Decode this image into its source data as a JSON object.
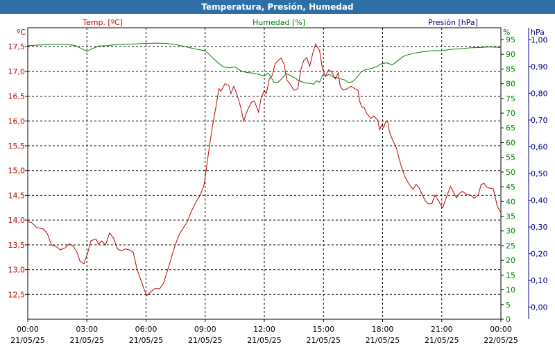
{
  "window": {
    "title": "Temperatura, Presión, Humedad"
  },
  "chart_data": {
    "type": "line",
    "title": "Temperatura, Presión, Humedad",
    "grid": true,
    "x_ticks": [
      {
        "time": "00:00",
        "date": "21/05/25"
      },
      {
        "time": "03:00",
        "date": "21/05/25"
      },
      {
        "time": "06:00",
        "date": "21/05/25"
      },
      {
        "time": "09:00",
        "date": "21/05/25"
      },
      {
        "time": "12:00",
        "date": "21/05/25"
      },
      {
        "time": "15:00",
        "date": "21/05/25"
      },
      {
        "time": "18:00",
        "date": "21/05/25"
      },
      {
        "time": "21:00",
        "date": "21/05/25"
      },
      {
        "time": "00:00",
        "date": "22/05/25"
      }
    ],
    "xlim": [
      "21/05/25 00:00",
      "22/05/25 00:00"
    ],
    "x_hours_range": [
      0,
      24
    ],
    "axes": {
      "temp": {
        "label": "Temp. [ºC]",
        "unit": "ºC",
        "color": "#c00000",
        "side": "left",
        "range": [
          12.0,
          17.88
        ],
        "ticks": [
          "12,5",
          "13,0",
          "13,5",
          "14,0",
          "14,5",
          "15,0",
          "15,5",
          "16,0",
          "16,5",
          "17,0",
          "17,5"
        ]
      },
      "hum": {
        "label": "Humedad [%]",
        "unit": "%",
        "color": "#008000",
        "side": "right",
        "range": [
          0,
          99
        ],
        "ticks": [
          "0",
          "5",
          "10",
          "15",
          "20",
          "25",
          "30",
          "35",
          "40",
          "45",
          "50",
          "55",
          "60",
          "65",
          "70",
          "75",
          "80",
          "85",
          "90",
          "95"
        ]
      },
      "pres": {
        "label": "Presión [hPa]",
        "unit": "hPa",
        "color": "#000080",
        "side": "right",
        "range": [
          -0.045,
          1.045
        ],
        "ticks": [
          "0,00",
          "0,10",
          "0,20",
          "0,30",
          "0,40",
          "0,50",
          "0,60",
          "0,70",
          "0,80",
          "0,90",
          "1,00"
        ]
      }
    },
    "series": [
      {
        "name": "Temp. [ºC]",
        "axis": "temp",
        "color": "#c00000",
        "points": [
          [
            0.0,
            13.97
          ],
          [
            0.2,
            13.95
          ],
          [
            0.45,
            13.85
          ],
          [
            0.8,
            13.82
          ],
          [
            1.0,
            13.72
          ],
          [
            1.2,
            13.5
          ],
          [
            1.4,
            13.48
          ],
          [
            1.65,
            13.4
          ],
          [
            1.9,
            13.44
          ],
          [
            2.1,
            13.52
          ],
          [
            2.3,
            13.48
          ],
          [
            2.5,
            13.35
          ],
          [
            2.65,
            13.17
          ],
          [
            2.85,
            13.12
          ],
          [
            3.05,
            13.35
          ],
          [
            3.2,
            13.58
          ],
          [
            3.45,
            13.62
          ],
          [
            3.6,
            13.52
          ],
          [
            3.75,
            13.58
          ],
          [
            3.95,
            13.5
          ],
          [
            4.15,
            13.74
          ],
          [
            4.35,
            13.64
          ],
          [
            4.55,
            13.42
          ],
          [
            4.75,
            13.38
          ],
          [
            4.95,
            13.42
          ],
          [
            5.15,
            13.4
          ],
          [
            5.35,
            13.35
          ],
          [
            5.55,
            13.0
          ],
          [
            5.75,
            12.78
          ],
          [
            5.95,
            12.55
          ],
          [
            6.05,
            12.48
          ],
          [
            6.2,
            12.54
          ],
          [
            6.45,
            12.62
          ],
          [
            6.7,
            12.62
          ],
          [
            6.9,
            12.74
          ],
          [
            7.1,
            13.0
          ],
          [
            7.3,
            13.26
          ],
          [
            7.5,
            13.52
          ],
          [
            7.7,
            13.72
          ],
          [
            7.9,
            13.85
          ],
          [
            8.1,
            13.97
          ],
          [
            8.3,
            14.18
          ],
          [
            8.55,
            14.38
          ],
          [
            8.75,
            14.5
          ],
          [
            8.95,
            14.72
          ],
          [
            9.15,
            15.3
          ],
          [
            9.35,
            15.85
          ],
          [
            9.55,
            16.3
          ],
          [
            9.7,
            16.65
          ],
          [
            9.8,
            16.6
          ],
          [
            10.0,
            16.75
          ],
          [
            10.2,
            16.72
          ],
          [
            10.3,
            16.55
          ],
          [
            10.45,
            16.7
          ],
          [
            10.6,
            16.55
          ],
          [
            10.8,
            16.28
          ],
          [
            10.95,
            16.0
          ],
          [
            11.15,
            16.22
          ],
          [
            11.35,
            16.38
          ],
          [
            11.5,
            16.4
          ],
          [
            11.7,
            16.18
          ],
          [
            11.85,
            16.48
          ],
          [
            12.0,
            16.62
          ],
          [
            12.1,
            16.55
          ],
          [
            12.25,
            16.84
          ],
          [
            12.4,
            16.92
          ],
          [
            12.55,
            17.15
          ],
          [
            12.7,
            17.22
          ],
          [
            12.85,
            17.27
          ],
          [
            13.0,
            17.15
          ],
          [
            13.15,
            16.82
          ],
          [
            13.3,
            16.75
          ],
          [
            13.5,
            16.62
          ],
          [
            13.7,
            16.65
          ],
          [
            13.85,
            17.03
          ],
          [
            14.0,
            17.22
          ],
          [
            14.15,
            17.28
          ],
          [
            14.3,
            17.1
          ],
          [
            14.45,
            17.35
          ],
          [
            14.6,
            17.55
          ],
          [
            14.8,
            17.42
          ],
          [
            14.95,
            17.05
          ],
          [
            15.1,
            16.9
          ],
          [
            15.25,
            17.03
          ],
          [
            15.4,
            17.0
          ],
          [
            15.6,
            16.85
          ],
          [
            15.75,
            16.97
          ],
          [
            15.85,
            16.7
          ],
          [
            16.0,
            16.62
          ],
          [
            16.2,
            16.65
          ],
          [
            16.4,
            16.7
          ],
          [
            16.6,
            16.65
          ],
          [
            16.75,
            16.62
          ],
          [
            16.85,
            16.38
          ],
          [
            16.95,
            16.28
          ],
          [
            17.05,
            16.28
          ],
          [
            17.2,
            16.15
          ],
          [
            17.4,
            16.05
          ],
          [
            17.55,
            16.1
          ],
          [
            17.75,
            16.02
          ],
          [
            17.85,
            15.82
          ],
          [
            17.95,
            15.92
          ],
          [
            18.05,
            15.87
          ],
          [
            18.15,
            15.98
          ],
          [
            18.25,
            16.0
          ],
          [
            18.35,
            15.78
          ],
          [
            18.5,
            15.62
          ],
          [
            18.7,
            15.46
          ],
          [
            18.85,
            15.22
          ],
          [
            19.0,
            15.02
          ],
          [
            19.15,
            14.86
          ],
          [
            19.35,
            14.72
          ],
          [
            19.55,
            14.62
          ],
          [
            19.7,
            14.72
          ],
          [
            19.85,
            14.65
          ],
          [
            20.0,
            14.52
          ],
          [
            20.15,
            14.4
          ],
          [
            20.3,
            14.33
          ],
          [
            20.5,
            14.33
          ],
          [
            20.65,
            14.5
          ],
          [
            20.85,
            14.38
          ],
          [
            20.95,
            14.3
          ],
          [
            21.05,
            14.25
          ],
          [
            21.25,
            14.48
          ],
          [
            21.45,
            14.68
          ],
          [
            21.6,
            14.56
          ],
          [
            21.75,
            14.45
          ],
          [
            21.9,
            14.54
          ],
          [
            22.05,
            14.58
          ],
          [
            22.25,
            14.52
          ],
          [
            22.5,
            14.5
          ],
          [
            22.65,
            14.44
          ],
          [
            22.85,
            14.5
          ],
          [
            23.0,
            14.72
          ],
          [
            23.15,
            14.74
          ],
          [
            23.3,
            14.66
          ],
          [
            23.45,
            14.64
          ],
          [
            23.6,
            14.64
          ],
          [
            23.7,
            14.5
          ],
          [
            23.8,
            14.3
          ],
          [
            23.95,
            14.18
          ],
          [
            24.0,
            14.15
          ],
          [
            24.1,
            14.18
          ],
          [
            24.2,
            14.24
          ]
        ]
      },
      {
        "name": "Humedad [%]",
        "axis": "hum",
        "color": "#008000",
        "points": [
          [
            0.0,
            92.9
          ],
          [
            0.5,
            93.1
          ],
          [
            1.0,
            93.3
          ],
          [
            1.5,
            93.4
          ],
          [
            2.0,
            93.3
          ],
          [
            2.4,
            93.0
          ],
          [
            2.7,
            92.0
          ],
          [
            3.0,
            91.0
          ],
          [
            3.3,
            92.0
          ],
          [
            3.6,
            92.8
          ],
          [
            4.0,
            92.9
          ],
          [
            4.5,
            93.3
          ],
          [
            5.0,
            93.4
          ],
          [
            5.5,
            93.5
          ],
          [
            6.0,
            93.7
          ],
          [
            6.5,
            93.8
          ],
          [
            7.0,
            93.7
          ],
          [
            7.5,
            93.3
          ],
          [
            8.0,
            92.6
          ],
          [
            8.5,
            91.8
          ],
          [
            9.0,
            91.2
          ],
          [
            9.3,
            89.3
          ],
          [
            9.6,
            87.4
          ],
          [
            9.9,
            85.8
          ],
          [
            10.2,
            85.4
          ],
          [
            10.5,
            85.7
          ],
          [
            10.8,
            84.4
          ],
          [
            11.1,
            83.8
          ],
          [
            11.4,
            83.6
          ],
          [
            11.7,
            83.2
          ],
          [
            12.0,
            82.6
          ],
          [
            12.2,
            83.6
          ],
          [
            12.3,
            82.5
          ],
          [
            12.5,
            80.5
          ],
          [
            12.7,
            80.5
          ],
          [
            12.9,
            81.8
          ],
          [
            13.1,
            83.4
          ],
          [
            13.3,
            82.9
          ],
          [
            13.5,
            82.2
          ],
          [
            13.7,
            81.2
          ],
          [
            13.9,
            80.7
          ],
          [
            14.1,
            80.2
          ],
          [
            14.3,
            80.2
          ],
          [
            14.5,
            79.8
          ],
          [
            14.65,
            81.0
          ],
          [
            14.8,
            80.5
          ],
          [
            14.95,
            82.9
          ],
          [
            15.1,
            82.6
          ],
          [
            15.3,
            83.2
          ],
          [
            15.5,
            82.2
          ],
          [
            15.7,
            82.1
          ],
          [
            15.9,
            81.6
          ],
          [
            16.1,
            81.2
          ],
          [
            16.3,
            80.3
          ],
          [
            16.5,
            80.8
          ],
          [
            16.7,
            82.2
          ],
          [
            16.9,
            83.9
          ],
          [
            17.1,
            84.7
          ],
          [
            17.4,
            85.1
          ],
          [
            17.7,
            85.8
          ],
          [
            17.9,
            86.7
          ],
          [
            18.2,
            87.1
          ],
          [
            18.5,
            86.4
          ],
          [
            18.8,
            88.0
          ],
          [
            19.1,
            89.5
          ],
          [
            19.4,
            90.0
          ],
          [
            19.7,
            90.5
          ],
          [
            20.0,
            90.8
          ],
          [
            20.5,
            91.2
          ],
          [
            21.0,
            91.2
          ],
          [
            21.5,
            91.7
          ],
          [
            22.0,
            91.9
          ],
          [
            22.5,
            92.2
          ],
          [
            23.0,
            92.3
          ],
          [
            23.4,
            92.5
          ],
          [
            23.7,
            92.4
          ],
          [
            24.0,
            92.3
          ],
          [
            24.2,
            91.9
          ]
        ]
      }
    ]
  }
}
